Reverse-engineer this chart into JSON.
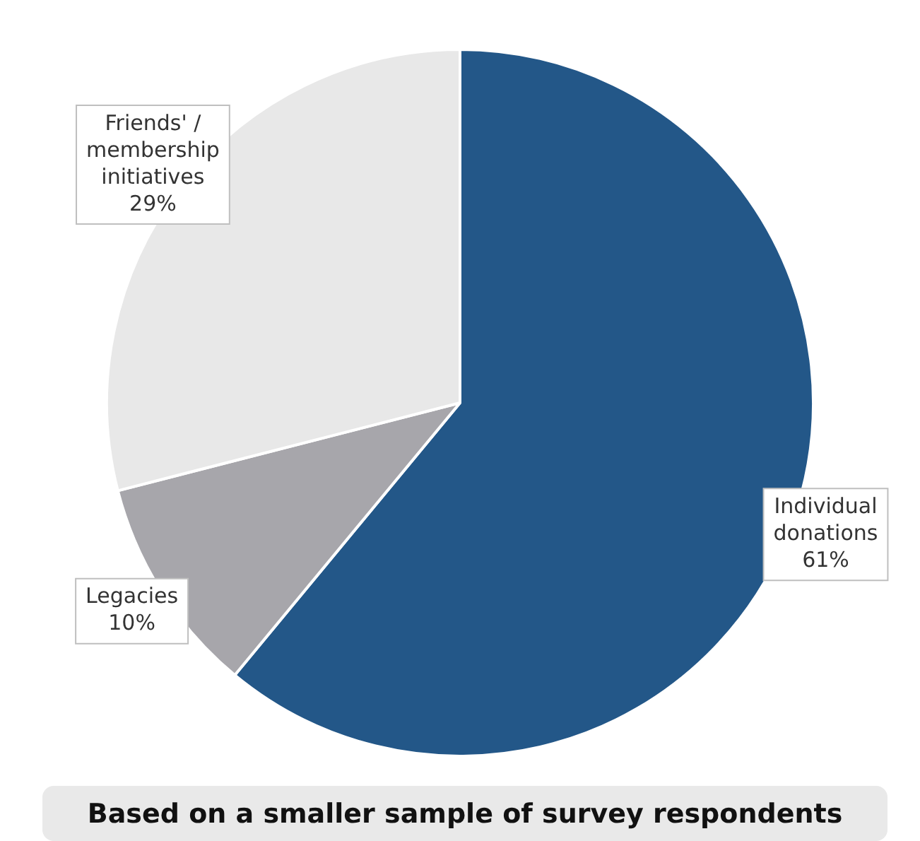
{
  "chart_data": {
    "type": "pie",
    "categories": [
      "Individual donations",
      "Legacies",
      "Friends' / membership initiatives"
    ],
    "values": [
      61,
      10,
      29
    ],
    "colors": [
      "#235788",
      "#a7a6ab",
      "#e8e8e8"
    ],
    "value_labels": [
      "61%",
      "10%",
      "29%"
    ],
    "legend": false,
    "annotations": [
      "Based on a smaller sample of survey respondents"
    ]
  }
}
